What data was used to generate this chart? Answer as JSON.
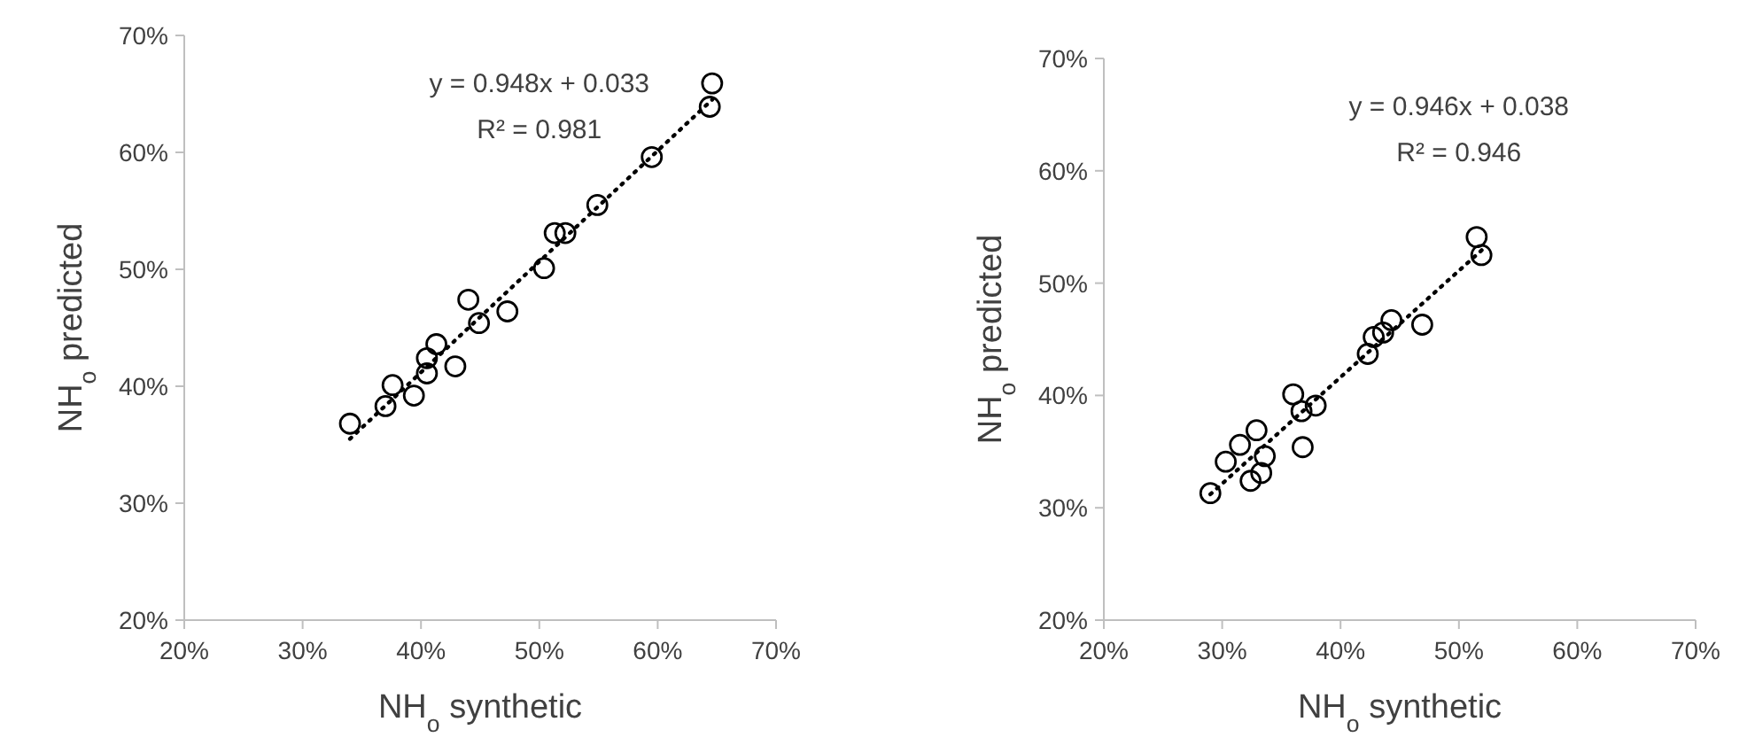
{
  "chart_data": [
    {
      "type": "scatter",
      "xlabel": "NH$_{o}$ synthetic",
      "ylabel": "NH$_{o}$ predicted",
      "xlim": [
        20,
        70
      ],
      "ylim": [
        20,
        70
      ],
      "xticks": [
        {
          "value": 20,
          "label": "20%"
        },
        {
          "value": 30,
          "label": "30%"
        },
        {
          "value": 40,
          "label": "40%"
        },
        {
          "value": 50,
          "label": "50%"
        },
        {
          "value": 60,
          "label": "60%"
        },
        {
          "value": 70,
          "label": "70%"
        }
      ],
      "yticks": [
        {
          "value": 20,
          "label": "20%"
        },
        {
          "value": 30,
          "label": "30%"
        },
        {
          "value": 40,
          "label": "40%"
        },
        {
          "value": 50,
          "label": "50%"
        },
        {
          "value": 60,
          "label": "60%"
        },
        {
          "value": 70,
          "label": "70%"
        }
      ],
      "marker": "circle",
      "grid": false,
      "annotations": [
        "y = 0.948x + 0.033",
        "R² = 0.981"
      ],
      "series": [
        {
          "color": "#000000",
          "x": [
            64.6,
            64.4,
            59.5,
            54.9,
            51.3,
            52.2,
            50.4,
            44.0,
            44.9,
            47.3,
            41.3,
            40.5,
            40.5,
            42.9,
            37.6,
            37.0,
            39.4,
            34.0
          ],
          "values": [
            65.9,
            63.9,
            59.6,
            55.5,
            53.1,
            53.1,
            50.1,
            47.4,
            45.4,
            46.4,
            43.6,
            42.4,
            41.1,
            41.7,
            40.1,
            38.3,
            39.2,
            36.8
          ]
        },
        {
          "type": "line",
          "color": "#000000",
          "line_style": "dotted",
          "marker": "none",
          "x": [
            34.0,
            64.6
          ],
          "values": [
            35.5,
            64.5
          ]
        }
      ]
    },
    {
      "type": "scatter",
      "xlabel": "NH$_{o}$ synthetic",
      "ylabel": "NH$_{o}$ predicted",
      "xlim": [
        20,
        70
      ],
      "ylim": [
        20,
        70
      ],
      "xticks": [
        {
          "value": 20,
          "label": "20%"
        },
        {
          "value": 30,
          "label": "30%"
        },
        {
          "value": 40,
          "label": "40%"
        },
        {
          "value": 50,
          "label": "50%"
        },
        {
          "value": 60,
          "label": "60%"
        },
        {
          "value": 70,
          "label": "70%"
        }
      ],
      "yticks": [
        {
          "value": 20,
          "label": "20%"
        },
        {
          "value": 30,
          "label": "30%"
        },
        {
          "value": 40,
          "label": "40%"
        },
        {
          "value": 50,
          "label": "50%"
        },
        {
          "value": 60,
          "label": "60%"
        },
        {
          "value": 70,
          "label": "70%"
        }
      ],
      "marker": "circle",
      "grid": false,
      "annotations": [
        "y = 0.946x + 0.038",
        "R² = 0.946"
      ],
      "series": [
        {
          "color": "#000000",
          "x": [
            51.5,
            51.9,
            46.9,
            44.3,
            43.6,
            42.8,
            42.3,
            36.0,
            36.7,
            37.9,
            36.8,
            32.9,
            31.5,
            33.6,
            33.3,
            32.4,
            30.3,
            29.0
          ],
          "values": [
            54.1,
            52.5,
            46.3,
            46.7,
            45.6,
            45.2,
            43.7,
            40.1,
            38.6,
            39.1,
            35.4,
            36.9,
            35.6,
            34.6,
            33.1,
            32.4,
            34.1,
            31.3
          ]
        },
        {
          "type": "line",
          "color": "#000000",
          "line_style": "dotted",
          "marker": "none",
          "x": [
            29.0,
            52.0
          ],
          "values": [
            31.2,
            53.0
          ]
        }
      ]
    }
  ]
}
